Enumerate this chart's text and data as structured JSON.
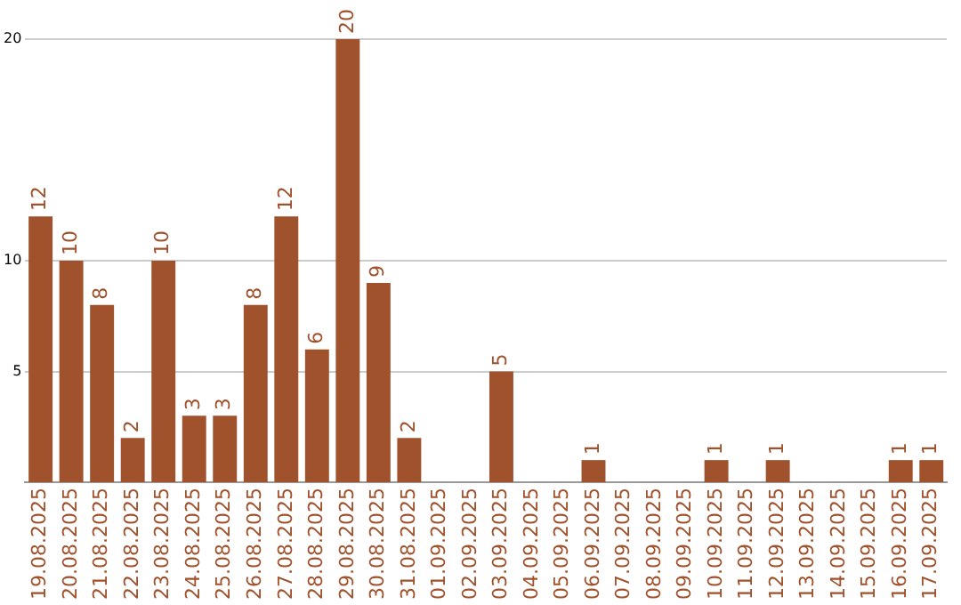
{
  "chart_data": {
    "type": "bar",
    "categories": [
      "19.08.2025",
      "20.08.2025",
      "21.08.2025",
      "22.08.2025",
      "23.08.2025",
      "24.08.2025",
      "25.08.2025",
      "26.08.2025",
      "27.08.2025",
      "28.08.2025",
      "29.08.2025",
      "30.08.2025",
      "31.08.2025",
      "01.09.2025",
      "02.09.2025",
      "03.09.2025",
      "04.09.2025",
      "05.09.2025",
      "06.09.2025",
      "07.09.2025",
      "08.09.2025",
      "09.09.2025",
      "10.09.2025",
      "11.09.2025",
      "12.09.2025",
      "13.09.2025",
      "14.09.2025",
      "15.09.2025",
      "16.09.2025",
      "17.09.2025"
    ],
    "values": [
      12,
      10,
      8,
      2,
      10,
      3,
      3,
      8,
      12,
      6,
      20,
      9,
      2,
      0,
      0,
      5,
      0,
      0,
      1,
      0,
      0,
      0,
      1,
      0,
      1,
      0,
      0,
      0,
      1,
      1
    ],
    "value_labels": [
      "12",
      "10",
      "8",
      "2",
      "10",
      "3",
      "3",
      "8",
      "12",
      "6",
      "20",
      "9",
      "2",
      null,
      null,
      "5",
      null,
      null,
      "1",
      null,
      null,
      null,
      "1",
      null,
      "1",
      null,
      null,
      null,
      "1",
      "1"
    ],
    "color": "#a0522d",
    "ylim": [
      0,
      20
    ],
    "yticks": [
      5,
      10,
      20
    ],
    "grid": "y",
    "legend": false
  }
}
